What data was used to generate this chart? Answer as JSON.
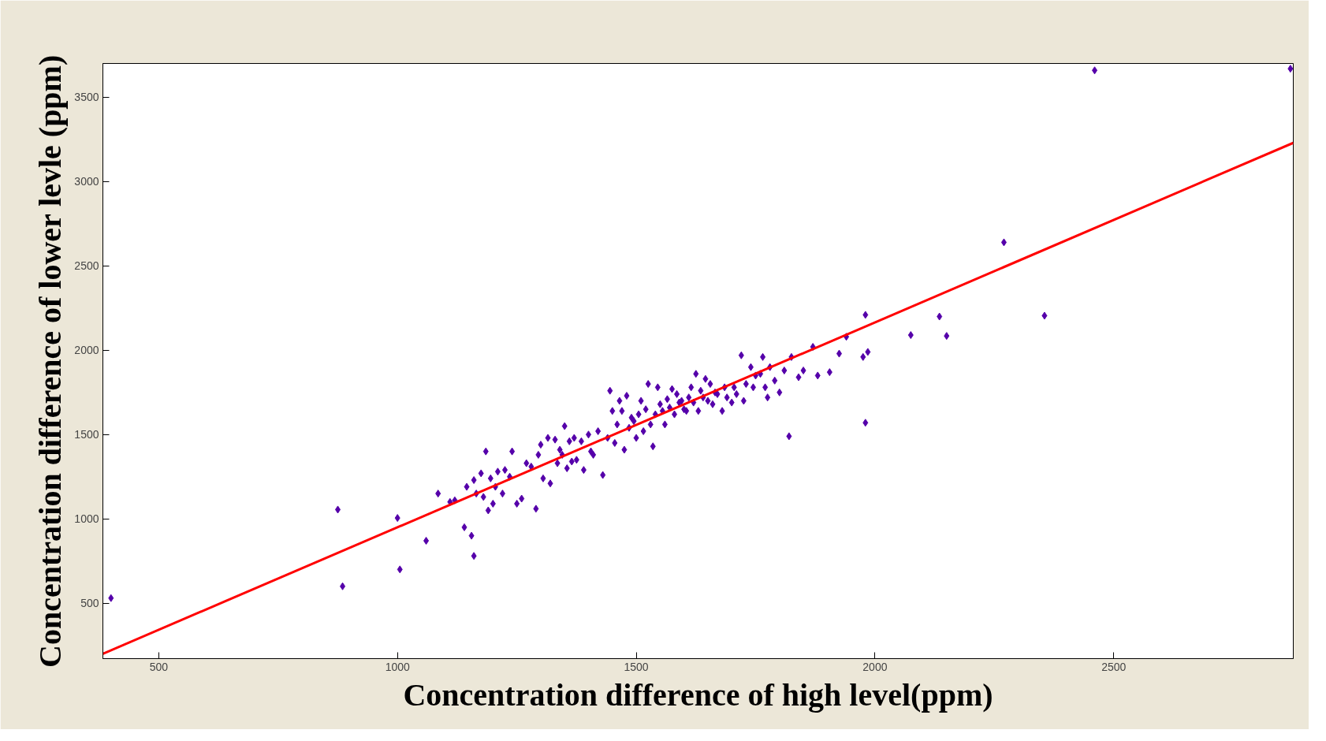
{
  "chart_data": {
    "type": "scatter",
    "xlabel": "Concentration difference of high level(ppm)",
    "ylabel": "Concentration difference of lower levle (ppm)",
    "xlim": [
      383,
      2876
    ],
    "ylim": [
      171,
      3701
    ],
    "xticks": [
      500,
      1000,
      1500,
      2000,
      2500
    ],
    "yticks": [
      500,
      1000,
      1500,
      2000,
      2500,
      3000,
      3500
    ],
    "grid": false,
    "series": [
      {
        "color": "#5500aa",
        "marker": "diamond",
        "x": [
          400,
          875,
          885,
          1000,
          1005,
          1060,
          1085,
          1110,
          1120,
          1140,
          1145,
          1155,
          1160,
          1160,
          1165,
          1175,
          1180,
          1185,
          1190,
          1195,
          1200,
          1205,
          1210,
          1220,
          1225,
          1235,
          1240,
          1250,
          1260,
          1270,
          1280,
          1290,
          1295,
          1300,
          1305,
          1315,
          1320,
          1330,
          1335,
          1340,
          1345,
          1350,
          1355,
          1360,
          1365,
          1370,
          1375,
          1385,
          1390,
          1400,
          1405,
          1410,
          1420,
          1430,
          1440,
          1445,
          1450,
          1455,
          1460,
          1465,
          1470,
          1475,
          1480,
          1485,
          1490,
          1495,
          1500,
          1505,
          1510,
          1515,
          1520,
          1525,
          1530,
          1535,
          1540,
          1545,
          1550,
          1555,
          1560,
          1565,
          1570,
          1575,
          1580,
          1585,
          1590,
          1595,
          1600,
          1605,
          1610,
          1615,
          1620,
          1625,
          1630,
          1635,
          1640,
          1645,
          1650,
          1655,
          1660,
          1665,
          1670,
          1680,
          1685,
          1690,
          1700,
          1705,
          1710,
          1720,
          1725,
          1730,
          1740,
          1745,
          1750,
          1760,
          1765,
          1770,
          1775,
          1780,
          1790,
          1800,
          1810,
          1820,
          1825,
          1840,
          1850,
          1870,
          1880,
          1905,
          1925,
          1940,
          1975,
          1980,
          1985,
          1980,
          2075,
          2135,
          2150,
          2270,
          2355,
          2460,
          2870
        ],
        "values": [
          530,
          1055,
          600,
          1005,
          700,
          870,
          1150,
          1100,
          1110,
          950,
          1190,
          900,
          780,
          1230,
          1150,
          1270,
          1130,
          1400,
          1050,
          1240,
          1090,
          1190,
          1280,
          1150,
          1290,
          1250,
          1400,
          1090,
          1120,
          1330,
          1310,
          1060,
          1380,
          1440,
          1240,
          1480,
          1210,
          1470,
          1330,
          1410,
          1380,
          1550,
          1300,
          1460,
          1340,
          1480,
          1350,
          1460,
          1290,
          1500,
          1400,
          1380,
          1520,
          1260,
          1480,
          1760,
          1640,
          1450,
          1560,
          1700,
          1640,
          1410,
          1730,
          1540,
          1600,
          1580,
          1480,
          1620,
          1700,
          1520,
          1650,
          1800,
          1560,
          1430,
          1620,
          1780,
          1680,
          1640,
          1560,
          1710,
          1660,
          1770,
          1620,
          1740,
          1690,
          1700,
          1650,
          1640,
          1720,
          1780,
          1690,
          1860,
          1640,
          1760,
          1720,
          1830,
          1700,
          1800,
          1680,
          1750,
          1740,
          1640,
          1780,
          1720,
          1690,
          1780,
          1740,
          1970,
          1700,
          1800,
          1900,
          1780,
          1850,
          1860,
          1960,
          1780,
          1720,
          1900,
          1820,
          1750,
          1880,
          1490,
          1960,
          1840,
          1880,
          2020,
          1850,
          1870,
          1980,
          2080,
          1960,
          1570,
          1990,
          2210,
          2090,
          2200,
          2085,
          2640,
          2205,
          3660,
          3670
        ]
      },
      {
        "type": "line",
        "marker": "none",
        "color": "#ff0000",
        "x": [
          383,
          2876
        ],
        "values": [
          200,
          3230
        ]
      }
    ]
  }
}
